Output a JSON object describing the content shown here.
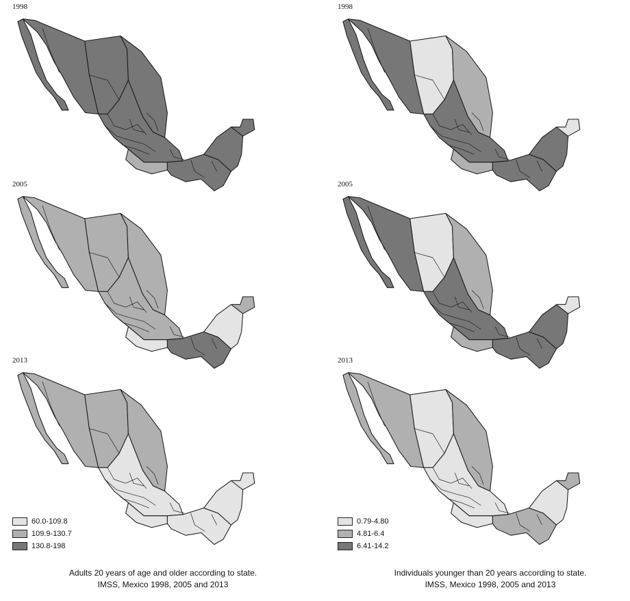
{
  "colors": {
    "low": "#e4e4e4",
    "mid": "#b0b0b0",
    "high": "#777777"
  },
  "left": {
    "maps": [
      {
        "year": "1998",
        "coverage": {
          "nw": "high",
          "north": "high",
          "ne": "high",
          "center": "high",
          "pacific_south": "mid",
          "south": "high",
          "yucatan": "high",
          "yucatan_ne": "high"
        }
      },
      {
        "year": "2005",
        "coverage": {
          "nw": "mid",
          "north": "mid",
          "ne": "mid",
          "center": "mid",
          "pacific_south": "low",
          "south": "high",
          "yucatan": "low",
          "yucatan_ne": "mid"
        }
      },
      {
        "year": "2013",
        "coverage": {
          "nw": "mid",
          "north": "mid",
          "ne": "mid",
          "center": "low",
          "pacific_south": "low",
          "south": "low",
          "yucatan": "low",
          "yucatan_ne": "low"
        }
      }
    ],
    "legend": [
      {
        "label": "60.0-109.8",
        "level": "low"
      },
      {
        "label": "109.9-130.7",
        "level": "mid"
      },
      {
        "label": "130.8-198",
        "level": "high"
      }
    ],
    "caption_line1": "Adults 20 years of age and older according to state.",
    "caption_line2": "IMSS, Mexico 1998, 2005 and 2013"
  },
  "right": {
    "maps": [
      {
        "year": "1998",
        "coverage": {
          "nw": "high",
          "north": "low",
          "ne": "mid",
          "center": "high",
          "pacific_south": "mid",
          "south": "high",
          "yucatan": "high",
          "yucatan_ne": "low"
        }
      },
      {
        "year": "2005",
        "coverage": {
          "nw": "high",
          "north": "low",
          "ne": "mid",
          "center": "high",
          "pacific_south": "mid",
          "south": "high",
          "yucatan": "high",
          "yucatan_ne": "low"
        }
      },
      {
        "year": "2013",
        "coverage": {
          "nw": "mid",
          "north": "low",
          "ne": "mid",
          "center": "low",
          "pacific_south": "low",
          "south": "mid",
          "yucatan": "low",
          "yucatan_ne": "mid"
        }
      }
    ],
    "legend": [
      {
        "label": "0.79-4.80",
        "level": "low"
      },
      {
        "label": "4.81-6.4",
        "level": "mid"
      },
      {
        "label": "6.41-14.2",
        "level": "high"
      }
    ],
    "caption_line1": "Individuals younger than 20 years according to state.",
    "caption_line2": "IMSS, Mexico 1998, 2005 and 2013"
  }
}
